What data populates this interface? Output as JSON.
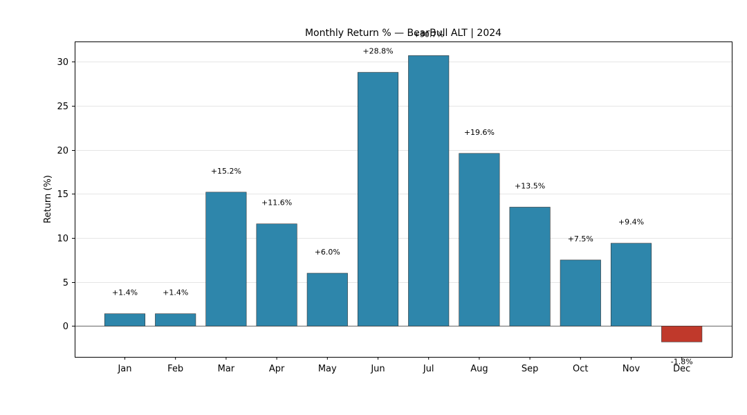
{
  "chart_data": {
    "type": "bar",
    "title": "Monthly Return % — BearBull ALT | 2024",
    "xlabel": "",
    "ylabel": "Return (%)",
    "categories": [
      "Jan",
      "Feb",
      "Mar",
      "Apr",
      "May",
      "Jun",
      "Jul",
      "Aug",
      "Sep",
      "Oct",
      "Nov",
      "Dec"
    ],
    "values": [
      1.4,
      1.4,
      15.2,
      11.6,
      6.0,
      28.8,
      30.7,
      19.6,
      13.5,
      7.5,
      9.4,
      -1.8
    ],
    "data_labels": [
      "+1.4%",
      "+1.4%",
      "+15.2%",
      "+11.6%",
      "+6.0%",
      "+28.8%",
      "+30.7%",
      "+19.6%",
      "+13.5%",
      "+7.5%",
      "+9.4%",
      "-1.8%"
    ],
    "ylim": [
      -3.5,
      32.3
    ],
    "yticks": [
      0,
      5,
      10,
      15,
      20,
      25,
      30
    ],
    "ytick_labels": [
      "0",
      "5",
      "10",
      "15",
      "20",
      "25",
      "30"
    ],
    "grid": "horizontal",
    "colors": {
      "positive": "#2e86ab",
      "negative": "#c0392b",
      "bar_edge": "#333333",
      "grid": "#dddddd",
      "zero_line": "#666666"
    }
  }
}
